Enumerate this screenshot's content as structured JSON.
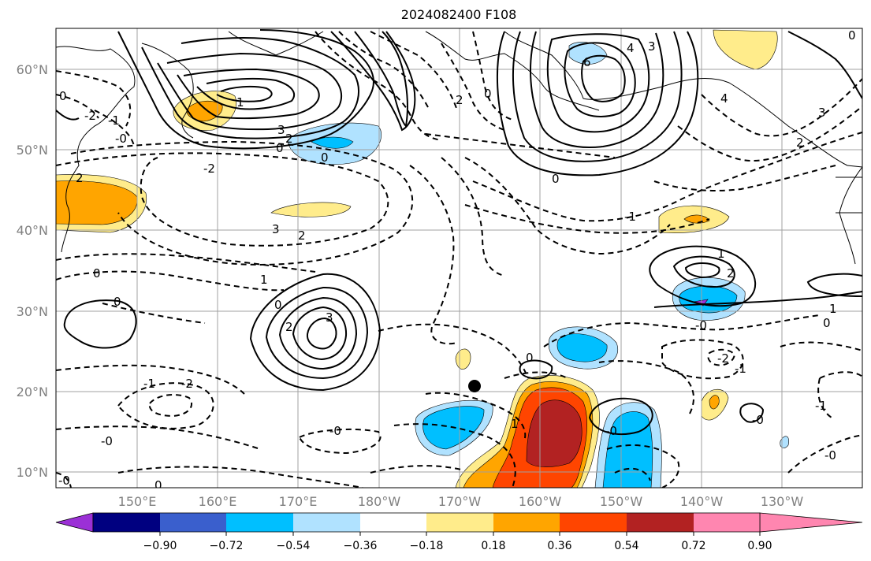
{
  "figure": {
    "title": "2024082400 F108"
  },
  "axes": {
    "lat_ticks": [
      "60°N",
      "50°N",
      "40°N",
      "30°N",
      "20°N",
      "10°N"
    ],
    "lon_ticks": [
      "150°E",
      "160°E",
      "170°E",
      "180°W",
      "170°W",
      "160°W",
      "150°W",
      "140°W",
      "130°W"
    ]
  },
  "colorbar": {
    "ticks": [
      "−0.90",
      "−0.72",
      "−0.54",
      "−0.36",
      "−0.18",
      "0.18",
      "0.36",
      "0.54",
      "0.72",
      "0.90"
    ],
    "colors": [
      "#9b30d6",
      "#000080",
      "#3a5fcd",
      "#00bfff",
      "#b0e2ff",
      "#ffffff",
      "#ffec8b",
      "#ffa500",
      "#ff4500",
      "#b22222",
      "#ff86b0"
    ]
  },
  "contour_labels": {
    "l1": "6",
    "l2": "4",
    "l3": "3",
    "l4": "0",
    "l5": "2",
    "l6": "1",
    "l7": "3",
    "l8": "2",
    "l9": "0",
    "l10": "0",
    "l11": "-2",
    "l12": "3",
    "l13": "2",
    "l14": "1",
    "l15": "0",
    "l16": "0",
    "l17": "-2",
    "l18": "2",
    "l19": "3",
    "l20": "0",
    "l21": "-2",
    "l22": "-1",
    "l23": "-0",
    "l24": "0",
    "l25": "2",
    "l26": "3",
    "l27": "2",
    "l28": "-2",
    "l29": "-1",
    "l30": "1",
    "l31": "2",
    "l32": "-0",
    "l33": "1",
    "l34": "0",
    "l35": "0",
    "l36": "-1",
    "l37": "0",
    "l38": "1",
    "l39": "-0",
    "l40": "-0",
    "l41": "0",
    "l42": "-0",
    "l43": "-1",
    "l44": "-0",
    "l45": "-0",
    "l46": "-1",
    "l47": "4",
    "l48": "0",
    "l49": "-0"
  }
}
